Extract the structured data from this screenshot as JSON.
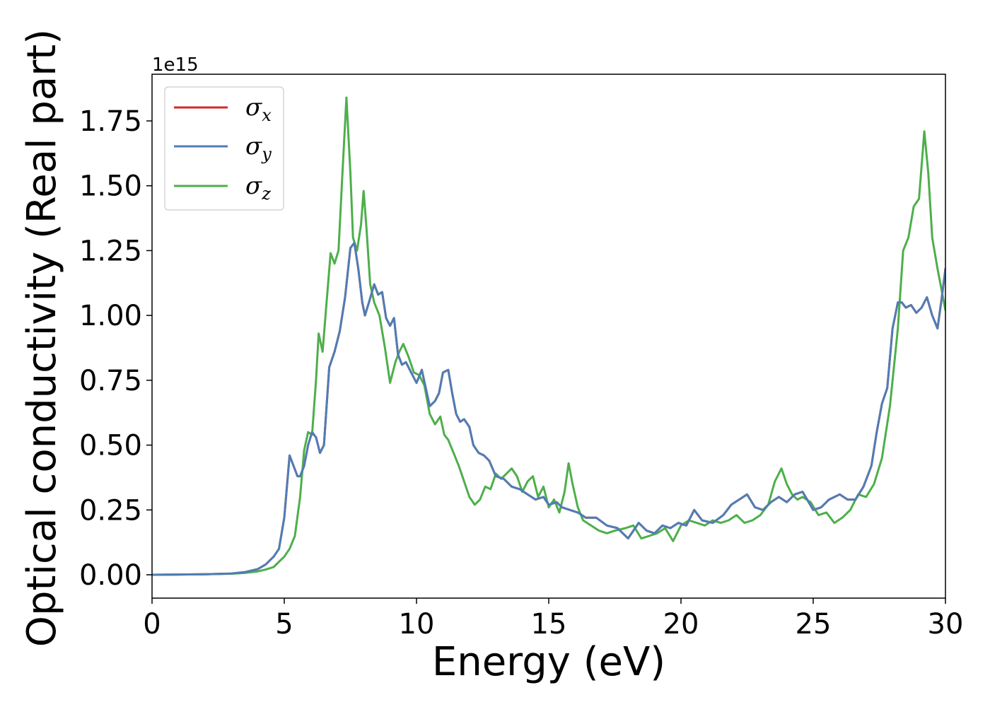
{
  "chart_data": {
    "type": "line",
    "xlabel": "Energy (eV)",
    "ylabel": "Optical conductivity (Real part)",
    "y_offset_label": "1e15",
    "xlim": [
      0,
      30
    ],
    "ylim": [
      -0.09,
      1.93
    ],
    "x_ticks": [
      0,
      5,
      10,
      15,
      20,
      25,
      30
    ],
    "x_tick_labels": [
      "0",
      "5",
      "10",
      "15",
      "20",
      "25",
      "30"
    ],
    "y_ticks": [
      0.0,
      0.25,
      0.5,
      0.75,
      1.0,
      1.25,
      1.5,
      1.75
    ],
    "y_tick_labels": [
      "0.00",
      "0.25",
      "0.50",
      "0.75",
      "1.00",
      "1.25",
      "1.50",
      "1.75"
    ],
    "grid": false,
    "legend_position": "top-left",
    "series": [
      {
        "name": "σx",
        "legend_base": "σ",
        "legend_sub": "x",
        "color": "#d62728",
        "x": [
          0,
          2,
          3,
          3.5,
          4,
          4.3,
          4.6,
          4.8,
          5.0,
          5.2,
          5.35,
          5.5,
          5.6,
          5.75,
          5.9,
          6.05,
          6.2,
          6.35,
          6.5,
          6.7,
          6.9,
          7.1,
          7.3,
          7.5,
          7.65,
          7.8,
          7.95,
          8.05,
          8.2,
          8.4,
          8.55,
          8.7,
          8.85,
          9.0,
          9.15,
          9.3,
          9.45,
          9.6,
          9.8,
          10.0,
          10.2,
          10.35,
          10.5,
          10.7,
          10.85,
          11.0,
          11.2,
          11.35,
          11.5,
          11.65,
          11.8,
          12.0,
          12.15,
          12.35,
          12.55,
          12.75,
          13.0,
          13.3,
          13.6,
          13.9,
          14.2,
          14.5,
          14.8,
          15.0,
          15.3,
          15.5,
          15.8,
          16.1,
          16.4,
          16.8,
          17.2,
          17.6,
          18.0,
          18.4,
          18.7,
          19.0,
          19.3,
          19.6,
          19.9,
          20.2,
          20.5,
          20.8,
          21.2,
          21.6,
          21.9,
          22.2,
          22.5,
          22.8,
          23.1,
          23.4,
          23.7,
          24.0,
          24.3,
          24.6,
          25.0,
          25.3,
          25.6,
          26.0,
          26.3,
          26.6,
          26.9,
          27.2,
          27.4,
          27.6,
          27.8,
          28.0,
          28.2,
          28.35,
          28.5,
          28.7,
          28.9,
          29.1,
          29.3,
          29.5,
          29.7,
          29.85,
          30.0
        ],
        "y": [
          0.0,
          0.002,
          0.005,
          0.01,
          0.022,
          0.04,
          0.07,
          0.1,
          0.22,
          0.46,
          0.42,
          0.38,
          0.38,
          0.42,
          0.5,
          0.55,
          0.53,
          0.47,
          0.5,
          0.8,
          0.86,
          0.94,
          1.07,
          1.26,
          1.28,
          1.18,
          1.05,
          1.0,
          1.05,
          1.12,
          1.08,
          1.09,
          0.99,
          0.96,
          0.99,
          0.85,
          0.81,
          0.82,
          0.78,
          0.74,
          0.79,
          0.72,
          0.65,
          0.67,
          0.7,
          0.78,
          0.79,
          0.7,
          0.62,
          0.59,
          0.6,
          0.57,
          0.5,
          0.47,
          0.46,
          0.44,
          0.38,
          0.37,
          0.34,
          0.33,
          0.31,
          0.29,
          0.3,
          0.27,
          0.28,
          0.26,
          0.25,
          0.24,
          0.22,
          0.22,
          0.19,
          0.18,
          0.14,
          0.2,
          0.17,
          0.16,
          0.19,
          0.18,
          0.2,
          0.19,
          0.25,
          0.21,
          0.2,
          0.23,
          0.27,
          0.29,
          0.31,
          0.26,
          0.25,
          0.28,
          0.3,
          0.28,
          0.31,
          0.32,
          0.25,
          0.26,
          0.29,
          0.31,
          0.29,
          0.29,
          0.34,
          0.42,
          0.55,
          0.66,
          0.72,
          0.95,
          1.05,
          1.05,
          1.03,
          1.04,
          1.01,
          1.03,
          1.07,
          1.0,
          0.95,
          1.06,
          1.18
        ]
      },
      {
        "name": "σy",
        "legend_base": "σ",
        "legend_sub": "y",
        "color": "#4f7db5",
        "x": [
          0,
          2,
          3,
          3.5,
          4,
          4.3,
          4.6,
          4.8,
          5.0,
          5.2,
          5.35,
          5.5,
          5.6,
          5.75,
          5.9,
          6.05,
          6.2,
          6.35,
          6.5,
          6.7,
          6.9,
          7.1,
          7.3,
          7.5,
          7.65,
          7.8,
          7.95,
          8.05,
          8.2,
          8.4,
          8.55,
          8.7,
          8.85,
          9.0,
          9.15,
          9.3,
          9.45,
          9.6,
          9.8,
          10.0,
          10.2,
          10.35,
          10.5,
          10.7,
          10.85,
          11.0,
          11.2,
          11.35,
          11.5,
          11.65,
          11.8,
          12.0,
          12.15,
          12.35,
          12.55,
          12.75,
          13.0,
          13.3,
          13.6,
          13.9,
          14.2,
          14.5,
          14.8,
          15.0,
          15.3,
          15.5,
          15.8,
          16.1,
          16.4,
          16.8,
          17.2,
          17.6,
          18.0,
          18.4,
          18.7,
          19.0,
          19.3,
          19.6,
          19.9,
          20.2,
          20.5,
          20.8,
          21.2,
          21.6,
          21.9,
          22.2,
          22.5,
          22.8,
          23.1,
          23.4,
          23.7,
          24.0,
          24.3,
          24.6,
          25.0,
          25.3,
          25.6,
          26.0,
          26.3,
          26.6,
          26.9,
          27.2,
          27.4,
          27.6,
          27.8,
          28.0,
          28.2,
          28.35,
          28.5,
          28.7,
          28.9,
          29.1,
          29.3,
          29.5,
          29.7,
          29.85,
          30.0
        ],
        "y": [
          0.0,
          0.002,
          0.005,
          0.01,
          0.022,
          0.04,
          0.07,
          0.1,
          0.22,
          0.46,
          0.42,
          0.38,
          0.38,
          0.42,
          0.5,
          0.55,
          0.53,
          0.47,
          0.5,
          0.8,
          0.86,
          0.94,
          1.07,
          1.26,
          1.28,
          1.18,
          1.05,
          1.0,
          1.05,
          1.12,
          1.08,
          1.09,
          0.99,
          0.96,
          0.99,
          0.85,
          0.81,
          0.82,
          0.78,
          0.74,
          0.79,
          0.72,
          0.65,
          0.67,
          0.7,
          0.78,
          0.79,
          0.7,
          0.62,
          0.59,
          0.6,
          0.57,
          0.5,
          0.47,
          0.46,
          0.44,
          0.38,
          0.37,
          0.34,
          0.33,
          0.31,
          0.29,
          0.3,
          0.27,
          0.28,
          0.26,
          0.25,
          0.24,
          0.22,
          0.22,
          0.19,
          0.18,
          0.14,
          0.2,
          0.17,
          0.16,
          0.19,
          0.18,
          0.2,
          0.19,
          0.25,
          0.21,
          0.2,
          0.23,
          0.27,
          0.29,
          0.31,
          0.26,
          0.25,
          0.28,
          0.3,
          0.28,
          0.31,
          0.32,
          0.25,
          0.26,
          0.29,
          0.31,
          0.29,
          0.29,
          0.34,
          0.42,
          0.55,
          0.66,
          0.72,
          0.95,
          1.05,
          1.05,
          1.03,
          1.04,
          1.01,
          1.03,
          1.07,
          1.0,
          0.95,
          1.06,
          1.18
        ]
      },
      {
        "name": "σz",
        "legend_base": "σ",
        "legend_sub": "z",
        "color": "#4daf4a",
        "x": [
          0,
          2,
          3,
          3.5,
          4,
          4.3,
          4.6,
          4.8,
          5.0,
          5.2,
          5.4,
          5.6,
          5.75,
          5.9,
          6.05,
          6.2,
          6.3,
          6.45,
          6.6,
          6.75,
          6.9,
          7.05,
          7.2,
          7.35,
          7.5,
          7.6,
          7.75,
          7.9,
          8.0,
          8.1,
          8.25,
          8.4,
          8.6,
          8.8,
          9.0,
          9.2,
          9.35,
          9.5,
          9.7,
          9.9,
          10.1,
          10.3,
          10.5,
          10.7,
          10.9,
          11.05,
          11.2,
          11.4,
          11.6,
          11.8,
          12.0,
          12.2,
          12.4,
          12.6,
          12.8,
          13.0,
          13.2,
          13.4,
          13.6,
          13.8,
          14.0,
          14.2,
          14.4,
          14.6,
          14.8,
          15.0,
          15.2,
          15.4,
          15.6,
          15.75,
          15.9,
          16.1,
          16.3,
          16.6,
          16.9,
          17.2,
          17.5,
          17.9,
          18.2,
          18.5,
          18.8,
          19.1,
          19.4,
          19.7,
          20.0,
          20.3,
          20.6,
          20.9,
          21.2,
          21.5,
          21.8,
          22.1,
          22.4,
          22.7,
          23.0,
          23.3,
          23.55,
          23.8,
          24.0,
          24.2,
          24.4,
          24.6,
          24.9,
          25.2,
          25.5,
          25.8,
          26.1,
          26.4,
          26.7,
          27.0,
          27.3,
          27.6,
          27.9,
          28.2,
          28.4,
          28.6,
          28.8,
          29.0,
          29.2,
          29.35,
          29.5,
          29.7,
          30.0
        ],
        "y": [
          0.0,
          0.002,
          0.004,
          0.007,
          0.013,
          0.02,
          0.03,
          0.05,
          0.07,
          0.1,
          0.15,
          0.3,
          0.48,
          0.55,
          0.54,
          0.75,
          0.93,
          0.86,
          1.05,
          1.24,
          1.2,
          1.25,
          1.55,
          1.84,
          1.55,
          1.3,
          1.25,
          1.35,
          1.48,
          1.35,
          1.12,
          1.05,
          1.0,
          0.88,
          0.74,
          0.82,
          0.86,
          0.89,
          0.84,
          0.78,
          0.77,
          0.73,
          0.62,
          0.58,
          0.61,
          0.54,
          0.52,
          0.47,
          0.42,
          0.36,
          0.3,
          0.27,
          0.29,
          0.34,
          0.33,
          0.39,
          0.37,
          0.39,
          0.41,
          0.38,
          0.32,
          0.36,
          0.38,
          0.3,
          0.34,
          0.26,
          0.29,
          0.24,
          0.32,
          0.43,
          0.35,
          0.26,
          0.21,
          0.19,
          0.17,
          0.16,
          0.17,
          0.18,
          0.19,
          0.14,
          0.15,
          0.16,
          0.18,
          0.13,
          0.19,
          0.21,
          0.2,
          0.19,
          0.21,
          0.2,
          0.21,
          0.23,
          0.2,
          0.21,
          0.23,
          0.27,
          0.36,
          0.41,
          0.35,
          0.31,
          0.29,
          0.3,
          0.28,
          0.23,
          0.24,
          0.2,
          0.22,
          0.25,
          0.31,
          0.3,
          0.35,
          0.45,
          0.65,
          0.95,
          1.25,
          1.3,
          1.42,
          1.45,
          1.71,
          1.55,
          1.3,
          1.18,
          1.02
        ]
      }
    ]
  }
}
